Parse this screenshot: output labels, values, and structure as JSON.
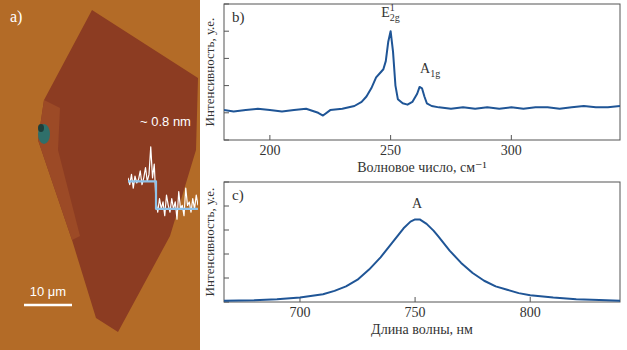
{
  "chart_data": [
    {
      "type": "image",
      "label": "a)",
      "annotations": [
        {
          "text": "~ 0.8 nm"
        }
      ],
      "scale_bar_label": "10 μm",
      "x": [
        0,
        1,
        2,
        3,
        4,
        5,
        6,
        7,
        8,
        9,
        10,
        11,
        12,
        13,
        14,
        15,
        16,
        17,
        18,
        19,
        20,
        21,
        22,
        23,
        24,
        25,
        26,
        27,
        28,
        29,
        30,
        31,
        32,
        33,
        34,
        35,
        36,
        37,
        38,
        39,
        40
      ],
      "series": [
        {
          "color": "#ffffff",
          "values": [
            0.9,
            0.7,
            1.0,
            0.6,
            0.95,
            0.75,
            0.85,
            1.1,
            0.7,
            0.9,
            1.2,
            0.8,
            1.0,
            1.8,
            0.9,
            1.3,
            0.2,
            -0.1,
            0.3,
            0.0,
            0.2,
            -0.2,
            0.4,
            0.1,
            -0.1,
            0.3,
            0.0,
            0.2,
            -0.3,
            0.5,
            0.0,
            0.1,
            -0.2,
            0.6,
            0.1,
            0.2,
            -0.1,
            0.3,
            0.0,
            0.4,
            0.1
          ]
        },
        {
          "color": "#8fc3ea",
          "x": [
            0,
            16,
            16,
            40
          ],
          "values": [
            0.8,
            0.8,
            0,
            0
          ]
        }
      ],
      "xlim": [
        0,
        40
      ],
      "ylim": [
        -0.5,
        2.0
      ],
      "tick_labels": false
    },
    {
      "type": "line",
      "label": "b)",
      "x_label": "Волновое число, см⁻¹",
      "y_label": "Интенсивность, у.е.",
      "x": [
        181,
        185,
        190,
        195,
        200,
        205,
        210,
        215,
        220,
        222,
        225,
        230,
        235,
        238,
        240,
        242,
        244,
        246,
        247,
        248,
        249,
        250,
        251,
        252,
        253,
        255,
        257,
        259,
        261,
        262,
        263,
        264,
        265,
        267,
        270,
        275,
        280,
        285,
        290,
        295,
        300,
        305,
        310,
        315,
        320,
        325,
        330,
        335,
        340,
        345
      ],
      "series": [
        {
          "color": "#1f5596",
          "values": [
            2.2,
            2.1,
            2.2,
            2.3,
            2.2,
            2.1,
            2.2,
            2.3,
            2.0,
            1.8,
            2.2,
            2.3,
            2.5,
            2.8,
            3.2,
            3.8,
            4.6,
            5.0,
            5.2,
            5.8,
            7.2,
            8.0,
            6.5,
            4.0,
            3.0,
            2.7,
            2.6,
            2.8,
            3.4,
            3.9,
            3.8,
            3.2,
            2.7,
            2.5,
            2.4,
            2.3,
            2.4,
            2.3,
            2.4,
            2.3,
            2.4,
            2.3,
            2.4,
            2.4,
            2.3,
            2.4,
            2.5,
            2.4,
            2.4,
            2.5
          ]
        }
      ],
      "annotations": [
        {
          "text": "E",
          "sup": "1",
          "sub": "2g",
          "x": 250,
          "y": 8.0
        },
        {
          "text": "A",
          "sub": "1g",
          "x": 263,
          "y": 3.9
        }
      ],
      "xlim": [
        181,
        345
      ],
      "ylim": [
        0,
        10
      ],
      "xticks": [
        200,
        250,
        300
      ],
      "yticks": [
        0,
        2,
        4,
        6,
        8,
        10
      ],
      "tick_labels": "x"
    },
    {
      "type": "line",
      "label": "c)",
      "x_label": "Длина волны, нм",
      "y_label": "Интенсивность, у.е.",
      "x": [
        667,
        680,
        690,
        700,
        710,
        715,
        720,
        725,
        730,
        735,
        740,
        745,
        748,
        750,
        752,
        755,
        758,
        760,
        765,
        770,
        775,
        780,
        785,
        790,
        795,
        800,
        810,
        820,
        830,
        839
      ],
      "series": [
        {
          "color": "#1f5596",
          "values": [
            0.1,
            0.14,
            0.23,
            0.37,
            0.65,
            0.93,
            1.3,
            1.86,
            2.7,
            3.72,
            4.93,
            6.14,
            6.7,
            6.88,
            6.88,
            6.51,
            5.95,
            5.49,
            4.28,
            3.26,
            2.42,
            1.77,
            1.3,
            1.02,
            0.74,
            0.56,
            0.37,
            0.23,
            0.17,
            0.11
          ]
        }
      ],
      "annotations": [
        {
          "text": "A",
          "x": 751,
          "y": 6.88
        }
      ],
      "xlim": [
        667,
        839
      ],
      "ylim": [
        0,
        10
      ],
      "xticks": [
        700,
        750,
        800
      ],
      "yticks": [
        0,
        2,
        4,
        6,
        8,
        10
      ],
      "tick_labels": "x"
    }
  ]
}
